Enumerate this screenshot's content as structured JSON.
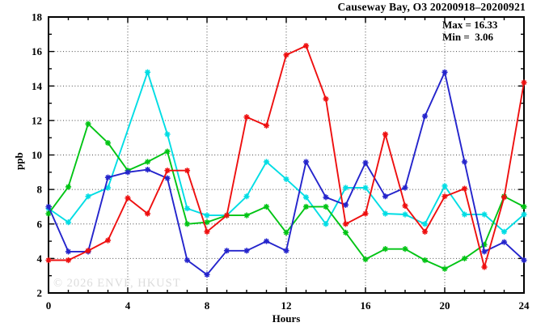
{
  "title": "Causeway Bay, O3 20200918–20200921",
  "annotations": {
    "max_label": "Max = 16.33",
    "min_label": "Min =  3.06"
  },
  "watermark": "© 2026 ENVF, HKUST",
  "chart_data": {
    "type": "line",
    "title": "Causeway Bay, O3 20200918–20200921",
    "xlabel": "Hours",
    "ylabel": "ppb",
    "xlim": [
      0,
      24
    ],
    "ylim": [
      2,
      18
    ],
    "xticks": [
      0,
      4,
      8,
      12,
      16,
      20,
      24
    ],
    "yticks": [
      2,
      4,
      6,
      8,
      10,
      12,
      14,
      16,
      18
    ],
    "minor_tick_step_x": 1,
    "minor_tick_step_y": 1,
    "grid": true,
    "legend": "none",
    "marker": "asterisk",
    "x": [
      0,
      1,
      2,
      3,
      4,
      5,
      6,
      7,
      8,
      9,
      10,
      11,
      12,
      13,
      14,
      15,
      16,
      17,
      18,
      19,
      20,
      21,
      22,
      23,
      24
    ],
    "series": [
      {
        "name": "series-cyan",
        "color": "#00dde4",
        "values": [
          6.9,
          6.1,
          7.6,
          8.1,
          null,
          14.8,
          11.2,
          6.9,
          6.5,
          6.5,
          7.6,
          9.6,
          8.6,
          7.55,
          6.0,
          8.1,
          8.1,
          6.6,
          6.55,
          6.0,
          8.2,
          6.55,
          6.55,
          5.55,
          6.55
        ]
      },
      {
        "name": "series-green",
        "color": "#00c414",
        "values": [
          6.6,
          8.15,
          11.8,
          10.7,
          9.1,
          9.6,
          10.2,
          6.0,
          6.1,
          6.5,
          6.5,
          7.0,
          5.5,
          7.0,
          7.0,
          5.5,
          3.95,
          4.55,
          4.55,
          3.9,
          3.4,
          4.0,
          4.8,
          7.6,
          7.0
        ]
      },
      {
        "name": "series-blue",
        "color": "#2424cc",
        "values": [
          7.0,
          4.4,
          4.4,
          8.7,
          9.0,
          9.15,
          8.65,
          3.9,
          3.06,
          4.45,
          4.45,
          5.0,
          4.45,
          9.6,
          7.55,
          7.1,
          9.55,
          7.6,
          8.1,
          12.25,
          14.8,
          9.6,
          4.4,
          4.95,
          3.9
        ]
      },
      {
        "name": "series-red",
        "color": "#ee0f0f",
        "values": [
          3.9,
          3.9,
          4.45,
          5.05,
          7.5,
          6.6,
          9.1,
          9.1,
          5.55,
          6.5,
          12.2,
          11.7,
          15.8,
          16.33,
          13.25,
          6.0,
          6.6,
          11.2,
          7.05,
          5.55,
          7.6,
          8.05,
          3.5,
          7.55,
          14.2
        ]
      }
    ],
    "max": 16.33,
    "min": 3.06
  }
}
